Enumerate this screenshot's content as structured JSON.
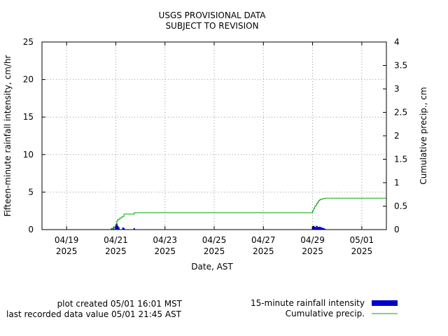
{
  "chart_data": {
    "type": "bar",
    "title_lines": [
      "USGS PROVISIONAL DATA",
      "SUBJECT TO REVISION"
    ],
    "xlabel": "Date, AST",
    "ylabel": "Fifteen-minute rainfall intensity, cm/hr",
    "y2label": "Cumulative precip., cm",
    "xlim": [
      "2025-04-18T00:00",
      "2025-05-02T00:00"
    ],
    "ylim": [
      0,
      25
    ],
    "y2lim": [
      0,
      4
    ],
    "yticks": [
      "0",
      "5",
      "10",
      "15",
      "20",
      "25"
    ],
    "y2ticks": [
      "0",
      "0.5",
      "1",
      "1.5",
      "2",
      "2.5",
      "3",
      "3.5",
      "4"
    ],
    "xticks": [
      {
        "date": "2025-04-19T00:00",
        "line1": "04/19",
        "line2": "2025"
      },
      {
        "date": "2025-04-21T00:00",
        "line1": "04/21",
        "line2": "2025"
      },
      {
        "date": "2025-04-23T00:00",
        "line1": "04/23",
        "line2": "2025"
      },
      {
        "date": "2025-04-25T00:00",
        "line1": "04/25",
        "line2": "2025"
      },
      {
        "date": "2025-04-27T00:00",
        "line1": "04/27",
        "line2": "2025"
      },
      {
        "date": "2025-04-29T00:00",
        "line1": "04/29",
        "line2": "2025"
      },
      {
        "date": "2025-05-01T00:00",
        "line1": "05/01",
        "line2": "2025"
      }
    ],
    "grid": true,
    "colors": {
      "intensity": "#0000cc",
      "cumulative": "#00aa00",
      "grid": "#999999"
    },
    "series": [
      {
        "name": "15-minute rainfall intensity",
        "type": "bar",
        "axis": "left",
        "points": [
          {
            "t": "2025-04-20T20:00",
            "v": 0.2
          },
          {
            "t": "2025-04-20T22:00",
            "v": 0.4
          },
          {
            "t": "2025-04-21T00:00",
            "v": 0.6
          },
          {
            "t": "2025-04-21T01:00",
            "v": 0.8
          },
          {
            "t": "2025-04-21T02:00",
            "v": 0.5
          },
          {
            "t": "2025-04-21T03:00",
            "v": 0.3
          },
          {
            "t": "2025-04-21T07:00",
            "v": 0.3
          },
          {
            "t": "2025-04-21T08:00",
            "v": 0.2
          },
          {
            "t": "2025-04-21T18:00",
            "v": 0.2
          },
          {
            "t": "2025-04-29T00:00",
            "v": 0.4
          },
          {
            "t": "2025-04-29T01:00",
            "v": 0.5
          },
          {
            "t": "2025-04-29T02:00",
            "v": 0.4
          },
          {
            "t": "2025-04-29T03:00",
            "v": 0.3
          },
          {
            "t": "2025-04-29T04:00",
            "v": 0.5
          },
          {
            "t": "2025-04-29T05:00",
            "v": 0.4
          },
          {
            "t": "2025-04-29T06:00",
            "v": 0.3
          },
          {
            "t": "2025-04-29T07:00",
            "v": 0.4
          },
          {
            "t": "2025-04-29T08:00",
            "v": 0.3
          },
          {
            "t": "2025-04-29T09:00",
            "v": 0.3
          },
          {
            "t": "2025-04-29T10:00",
            "v": 0.2
          },
          {
            "t": "2025-04-29T11:00",
            "v": 0.2
          },
          {
            "t": "2025-04-29T12:00",
            "v": 0.1
          }
        ]
      },
      {
        "name": "Cumulative precip.",
        "type": "step",
        "axis": "right",
        "points": [
          {
            "t": "2025-04-18T00:00",
            "v": 0.0
          },
          {
            "t": "2025-04-20T18:00",
            "v": 0.0
          },
          {
            "t": "2025-04-20T20:00",
            "v": 0.02
          },
          {
            "t": "2025-04-20T22:00",
            "v": 0.05
          },
          {
            "t": "2025-04-21T00:00",
            "v": 0.12
          },
          {
            "t": "2025-04-21T01:00",
            "v": 0.18
          },
          {
            "t": "2025-04-21T02:00",
            "v": 0.22
          },
          {
            "t": "2025-04-21T04:00",
            "v": 0.25
          },
          {
            "t": "2025-04-21T06:00",
            "v": 0.28
          },
          {
            "t": "2025-04-21T08:00",
            "v": 0.33
          },
          {
            "t": "2025-04-21T18:00",
            "v": 0.36
          },
          {
            "t": "2025-04-28T23:00",
            "v": 0.36
          },
          {
            "t": "2025-04-29T00:00",
            "v": 0.4
          },
          {
            "t": "2025-04-29T01:00",
            "v": 0.45
          },
          {
            "t": "2025-04-29T02:00",
            "v": 0.49
          },
          {
            "t": "2025-04-29T03:00",
            "v": 0.52
          },
          {
            "t": "2025-04-29T04:00",
            "v": 0.56
          },
          {
            "t": "2025-04-29T05:00",
            "v": 0.59
          },
          {
            "t": "2025-04-29T06:00",
            "v": 0.62
          },
          {
            "t": "2025-04-29T07:00",
            "v": 0.64
          },
          {
            "t": "2025-04-29T08:00",
            "v": 0.65
          },
          {
            "t": "2025-04-29T10:00",
            "v": 0.66
          },
          {
            "t": "2025-04-29T12:00",
            "v": 0.67
          },
          {
            "t": "2025-05-01T23:59",
            "v": 0.67
          }
        ]
      }
    ]
  },
  "footer": {
    "created": "plot created 05/01 16:01 MST",
    "last_recorded": "last recorded data value 05/01 21:45 AST"
  },
  "legend": {
    "placement": "bottom-right",
    "intensity_label": "15-minute rainfall intensity",
    "cumulative_label": "Cumulative precip."
  }
}
